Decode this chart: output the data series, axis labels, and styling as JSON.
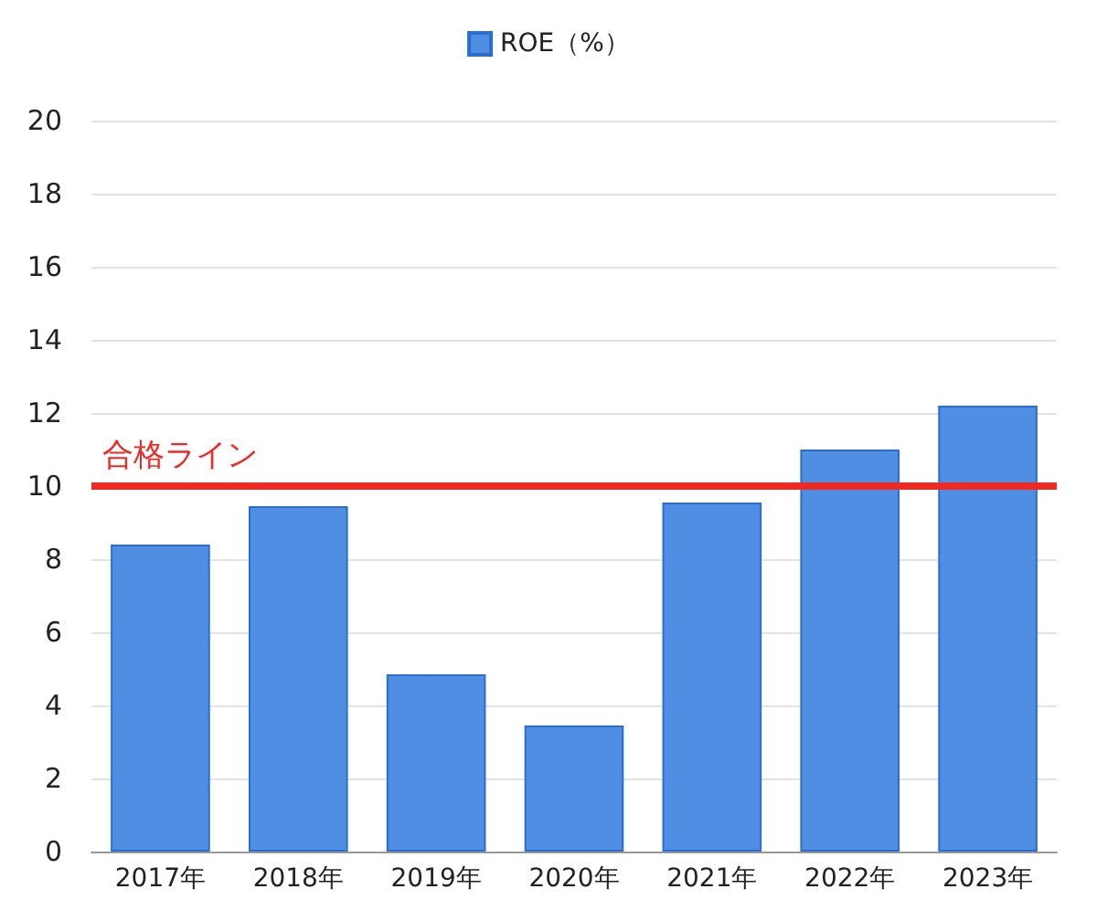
{
  "chart_data": {
    "type": "bar",
    "categories": [
      "2017年",
      "2018年",
      "2019年",
      "2020年",
      "2021年",
      "2022年",
      "2023年"
    ],
    "series": [
      {
        "name": "ROE（%）",
        "color": "#4f8ee3",
        "values": [
          8.4,
          9.45,
          4.85,
          3.45,
          9.55,
          11.0,
          12.2
        ]
      }
    ],
    "ylim": [
      0,
      20
    ],
    "yticks": [
      0,
      2,
      4,
      6,
      8,
      10,
      12,
      14,
      16,
      18,
      20
    ],
    "grid": "y",
    "legend": "top",
    "ref_lines": [
      {
        "axis": "y",
        "value": 10,
        "label": "合格ライン",
        "color": "#ee2a24",
        "line_style": "solid"
      }
    ]
  }
}
